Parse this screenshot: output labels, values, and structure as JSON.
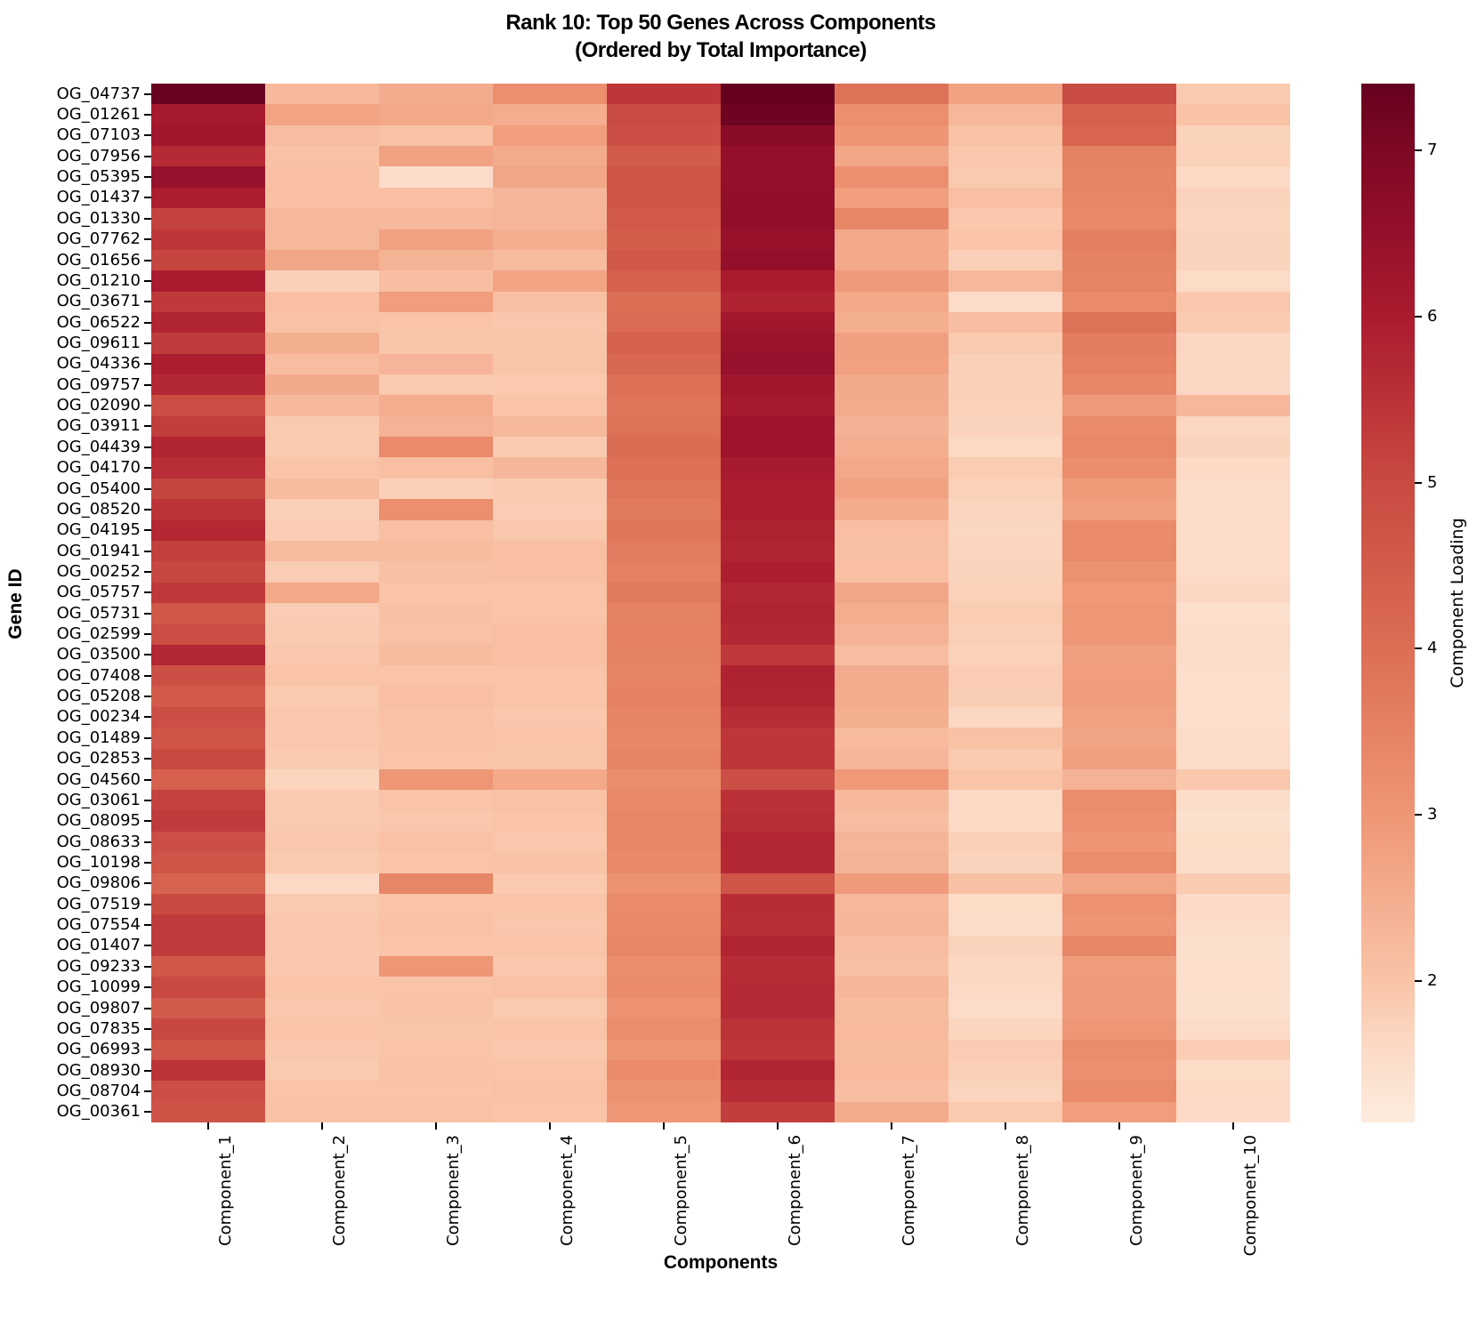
{
  "figure": {
    "title_line1": "Rank 10: Top 50 Genes Across Components",
    "title_line2": "(Ordered by Total Importance)",
    "background": "#ffffff",
    "text_color": "#000000"
  },
  "chart_data": {
    "type": "heatmap",
    "title": "Rank 10: Top 50 Genes Across Components (Ordered by Total Importance)",
    "xlabel": "Components",
    "ylabel": "Gene ID",
    "colorbar_label": "Component Loading",
    "legend_position": "right-colorbar",
    "grid": false,
    "vmin": 1.15,
    "vmax": 7.4,
    "colorbar_ticks": [
      2,
      3,
      4,
      5,
      6,
      7
    ],
    "colormap_stops": [
      [
        1.15,
        "#fdecdf"
      ],
      [
        1.6,
        "#fcdac6"
      ],
      [
        2.0,
        "#f9c4a7"
      ],
      [
        2.5,
        "#f4ad8f"
      ],
      [
        3.0,
        "#ee9776"
      ],
      [
        3.5,
        "#e68264"
      ],
      [
        4.0,
        "#dc6e55"
      ],
      [
        4.5,
        "#d25c4b"
      ],
      [
        5.0,
        "#c84a41"
      ],
      [
        5.5,
        "#bb3137"
      ],
      [
        6.0,
        "#aa1b2f"
      ],
      [
        6.5,
        "#94102a"
      ],
      [
        7.0,
        "#7e0823"
      ],
      [
        7.4,
        "#65011f"
      ]
    ],
    "x": [
      "Component_1",
      "Component_2",
      "Component_3",
      "Component_4",
      "Component_5",
      "Component_6",
      "Component_7",
      "Component_8",
      "Component_9",
      "Component_10"
    ],
    "y": [
      "OG_04737",
      "OG_01261",
      "OG_07103",
      "OG_07956",
      "OG_05395",
      "OG_01437",
      "OG_01330",
      "OG_07762",
      "OG_01656",
      "OG_01210",
      "OG_03671",
      "OG_06522",
      "OG_09611",
      "OG_04336",
      "OG_09757",
      "OG_02090",
      "OG_03911",
      "OG_04439",
      "OG_04170",
      "OG_05400",
      "OG_08520",
      "OG_04195",
      "OG_01941",
      "OG_00252",
      "OG_05757",
      "OG_05731",
      "OG_02599",
      "OG_03500",
      "OG_07408",
      "OG_05208",
      "OG_00234",
      "OG_01489",
      "OG_02853",
      "OG_04560",
      "OG_03061",
      "OG_08095",
      "OG_08633",
      "OG_10198",
      "OG_09806",
      "OG_07519",
      "OG_07554",
      "OG_01407",
      "OG_09233",
      "OG_10099",
      "OG_09807",
      "OG_07835",
      "OG_06993",
      "OG_08930",
      "OG_08704",
      "OG_00361"
    ],
    "values": [
      [
        7.35,
        2.25,
        2.55,
        3.2,
        5.4,
        7.4,
        3.9,
        2.75,
        4.95,
        1.9
      ],
      [
        6.1,
        2.72,
        2.62,
        2.5,
        4.95,
        7.25,
        3.2,
        2.28,
        4.35,
        2.05
      ],
      [
        6.2,
        2.15,
        2.05,
        2.85,
        4.85,
        6.75,
        3.05,
        2.05,
        4.25,
        1.75
      ],
      [
        5.65,
        2.05,
        2.75,
        2.55,
        4.5,
        6.5,
        2.65,
        1.95,
        3.5,
        1.76
      ],
      [
        6.45,
        2.1,
        1.55,
        2.65,
        4.7,
        6.5,
        3.2,
        1.9,
        3.45,
        1.6
      ],
      [
        5.95,
        2.1,
        2.1,
        2.3,
        4.7,
        6.55,
        2.85,
        2.1,
        3.42,
        1.72
      ],
      [
        5.15,
        2.28,
        2.25,
        2.33,
        4.55,
        6.55,
        3.4,
        1.93,
        3.33,
        1.7
      ],
      [
        5.4,
        2.26,
        2.75,
        2.5,
        4.45,
        6.4,
        2.6,
        2.0,
        3.6,
        1.73
      ],
      [
        5.1,
        2.65,
        2.37,
        2.2,
        4.6,
        6.5,
        2.6,
        1.8,
        3.5,
        1.73
      ],
      [
        6.0,
        1.78,
        2.12,
        2.7,
        4.35,
        6.0,
        2.9,
        2.27,
        3.45,
        1.58
      ],
      [
        5.35,
        2.1,
        2.85,
        2.08,
        4.0,
        5.85,
        2.6,
        1.55,
        3.3,
        1.93
      ],
      [
        5.8,
        2.05,
        2.0,
        1.95,
        4.1,
        6.2,
        2.48,
        2.12,
        3.9,
        1.87
      ],
      [
        5.3,
        2.48,
        1.97,
        1.96,
        4.35,
        6.38,
        2.8,
        1.9,
        3.65,
        1.68
      ],
      [
        5.95,
        2.15,
        2.32,
        1.98,
        4.2,
        6.45,
        2.78,
        1.78,
        3.55,
        1.65
      ],
      [
        5.7,
        2.57,
        1.9,
        1.91,
        3.95,
        6.25,
        2.57,
        1.78,
        3.4,
        1.63
      ],
      [
        4.9,
        2.25,
        2.5,
        2.0,
        3.85,
        6.1,
        2.55,
        1.76,
        2.9,
        2.28
      ],
      [
        5.25,
        1.9,
        2.4,
        2.25,
        3.9,
        6.3,
        2.42,
        1.74,
        3.28,
        1.67
      ],
      [
        5.77,
        1.88,
        3.3,
        1.87,
        4.05,
        6.3,
        2.5,
        1.62,
        3.36,
        1.72
      ],
      [
        5.58,
        2.0,
        2.1,
        2.3,
        3.95,
        6.05,
        2.62,
        1.86,
        3.22,
        1.6
      ],
      [
        5.1,
        2.2,
        1.8,
        1.87,
        3.85,
        5.95,
        2.76,
        1.77,
        2.92,
        1.57
      ],
      [
        5.45,
        1.8,
        3.2,
        1.85,
        3.7,
        5.95,
        2.52,
        1.71,
        2.82,
        1.57
      ],
      [
        5.72,
        1.85,
        2.1,
        1.95,
        3.82,
        5.85,
        2.1,
        1.68,
        3.28,
        1.55
      ],
      [
        5.2,
        2.2,
        2.2,
        2.1,
        3.68,
        5.78,
        2.08,
        1.7,
        3.32,
        1.55
      ],
      [
        5.05,
        1.85,
        2.07,
        2.1,
        3.55,
        5.92,
        2.1,
        1.74,
        3.1,
        1.56
      ],
      [
        5.35,
        2.6,
        2.0,
        2.0,
        3.7,
        5.75,
        2.65,
        1.76,
        2.95,
        1.63
      ],
      [
        4.6,
        1.85,
        2.07,
        2.0,
        3.5,
        5.8,
        2.5,
        1.84,
        3.0,
        1.48
      ],
      [
        4.9,
        1.88,
        2.05,
        2.1,
        3.55,
        5.7,
        2.4,
        1.8,
        3.0,
        1.57
      ],
      [
        5.75,
        1.95,
        2.2,
        2.1,
        3.5,
        5.35,
        2.15,
        1.76,
        2.8,
        1.53
      ],
      [
        4.85,
        2.0,
        2.0,
        2.0,
        3.45,
        5.85,
        2.55,
        1.85,
        2.85,
        1.49
      ],
      [
        4.55,
        1.9,
        2.1,
        2.0,
        3.52,
        5.8,
        2.52,
        1.82,
        2.87,
        1.51
      ],
      [
        4.85,
        1.95,
        2.05,
        1.95,
        3.45,
        5.6,
        2.48,
        1.66,
        2.77,
        1.48
      ],
      [
        4.7,
        1.92,
        2.02,
        2.0,
        3.38,
        5.4,
        2.22,
        2.05,
        2.68,
        1.54
      ],
      [
        5.0,
        1.88,
        2.0,
        1.98,
        3.45,
        5.4,
        2.3,
        1.88,
        2.82,
        1.57
      ],
      [
        4.35,
        1.7,
        3.0,
        2.6,
        3.25,
        4.85,
        2.95,
        2.0,
        2.4,
        1.92
      ],
      [
        5.15,
        1.88,
        2.0,
        2.05,
        3.35,
        5.5,
        2.25,
        1.62,
        3.25,
        1.52
      ],
      [
        5.3,
        1.9,
        1.95,
        2.0,
        3.43,
        5.55,
        2.15,
        1.6,
        3.18,
        1.46
      ],
      [
        4.85,
        1.95,
        2.05,
        1.95,
        3.4,
        5.75,
        2.32,
        1.78,
        3.05,
        1.58
      ],
      [
        4.7,
        1.9,
        2.0,
        2.02,
        3.33,
        5.7,
        2.36,
        1.73,
        3.24,
        1.53
      ],
      [
        4.3,
        1.62,
        3.4,
        1.9,
        3.1,
        4.7,
        2.9,
        2.06,
        2.65,
        1.88
      ],
      [
        5.0,
        1.9,
        2.0,
        2.0,
        3.3,
        5.6,
        2.27,
        1.58,
        3.15,
        1.59
      ],
      [
        5.3,
        1.95,
        2.05,
        1.95,
        3.33,
        5.55,
        2.3,
        1.52,
        3.05,
        1.57
      ],
      [
        5.3,
        1.92,
        2.0,
        2.0,
        3.42,
        5.8,
        2.12,
        1.74,
        3.4,
        1.45
      ],
      [
        4.6,
        1.95,
        3.0,
        1.95,
        3.22,
        5.6,
        2.08,
        1.64,
        2.86,
        1.5
      ],
      [
        5.0,
        2.0,
        2.0,
        2.05,
        3.28,
        5.65,
        2.3,
        1.62,
        2.9,
        1.49
      ],
      [
        4.5,
        1.95,
        2.02,
        1.9,
        3.15,
        5.68,
        2.18,
        1.56,
        2.9,
        1.46
      ],
      [
        5.05,
        2.0,
        1.98,
        2.0,
        3.25,
        5.45,
        2.22,
        1.7,
        3.0,
        1.55
      ],
      [
        4.7,
        1.95,
        2.0,
        1.95,
        3.08,
        5.4,
        2.18,
        1.85,
        3.25,
        1.83
      ],
      [
        5.45,
        1.9,
        2.02,
        2.0,
        3.27,
        5.78,
        2.22,
        1.8,
        3.18,
        1.58
      ],
      [
        4.85,
        2.0,
        2.0,
        2.05,
        3.1,
        5.6,
        2.12,
        1.71,
        3.3,
        1.61
      ],
      [
        4.75,
        2.05,
        2.05,
        2.0,
        3.0,
        5.25,
        2.55,
        1.9,
        2.84,
        1.59
      ]
    ]
  }
}
